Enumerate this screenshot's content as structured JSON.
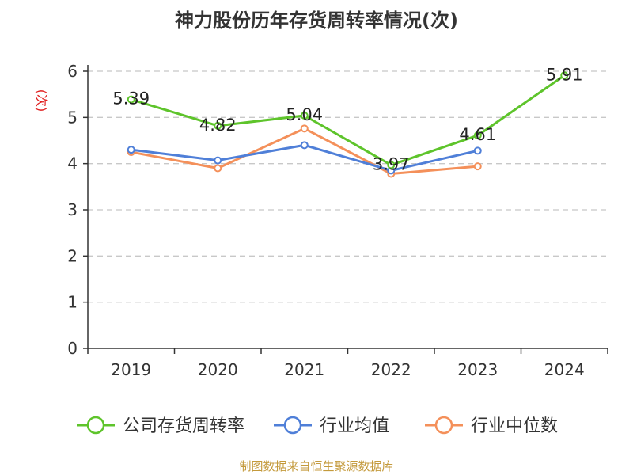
{
  "chart_data": {
    "type": "line",
    "title": "神力股份历年存货周转率情况(次)",
    "ylabel": "(次)",
    "categories": [
      "2019",
      "2020",
      "2021",
      "2022",
      "2023",
      "2024"
    ],
    "ylim": [
      0,
      6
    ],
    "yticks": [
      "0",
      "1",
      "2",
      "3",
      "4",
      "5",
      "6"
    ],
    "grid": true,
    "legend_position": "bottom",
    "series": [
      {
        "name": "公司存货周转率",
        "color": "#5ec42b",
        "values": [
          5.39,
          4.82,
          5.04,
          3.97,
          4.61,
          5.91
        ],
        "labels": [
          "5.39",
          "4.82",
          "5.04",
          "3.97",
          "4.61",
          "5.91"
        ]
      },
      {
        "name": "行业均值",
        "color": "#4f7fd8",
        "values": [
          4.3,
          4.07,
          4.4,
          3.85,
          4.28,
          null
        ]
      },
      {
        "name": "行业中位数",
        "color": "#f4905a",
        "values": [
          4.25,
          3.9,
          4.76,
          3.78,
          3.94,
          null
        ]
      }
    ]
  },
  "source": "制图数据来自恒生聚源数据库"
}
